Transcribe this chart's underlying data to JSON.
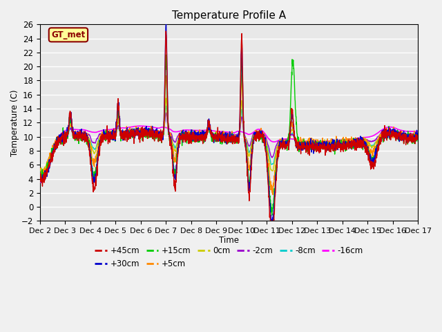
{
  "title": "Temperature Profile A",
  "xlabel": "Time",
  "ylabel": "Temperature (C)",
  "xlim": [
    0,
    15
  ],
  "ylim": [
    -2,
    26
  ],
  "yticks": [
    -2,
    0,
    2,
    4,
    6,
    8,
    10,
    12,
    14,
    16,
    18,
    20,
    22,
    24,
    26
  ],
  "xtick_labels": [
    "Dec 2",
    "Dec 3",
    "Dec 4",
    "Dec 5",
    "Dec 6",
    "Dec 7",
    "Dec 8",
    "Dec 9",
    "Dec 10",
    "Dec 11",
    "Dec 12",
    "Dec 13",
    "Dec 14",
    "Dec 15",
    "Dec 16",
    "Dec 17"
  ],
  "annotation_text": "GT_met",
  "annotation_box_color": "#FFFF99",
  "annotation_text_color": "#8B0000",
  "series": {
    "+45cm": {
      "color": "#CC0000",
      "lw": 1.0
    },
    "+30cm": {
      "color": "#0000CC",
      "lw": 1.0
    },
    "+15cm": {
      "color": "#00CC00",
      "lw": 1.0
    },
    "+5cm": {
      "color": "#FF8800",
      "lw": 1.0
    },
    "0cm": {
      "color": "#CCCC00",
      "lw": 1.0
    },
    "-2cm": {
      "color": "#9900CC",
      "lw": 1.0
    },
    "-8cm": {
      "color": "#00CCCC",
      "lw": 1.0
    },
    "-16cm": {
      "color": "#FF00FF",
      "lw": 1.2
    }
  },
  "background_color": "#E8E8E8",
  "grid_color": "#FFFFFF",
  "fig_facecolor": "#F0F0F0",
  "title_fontsize": 11
}
